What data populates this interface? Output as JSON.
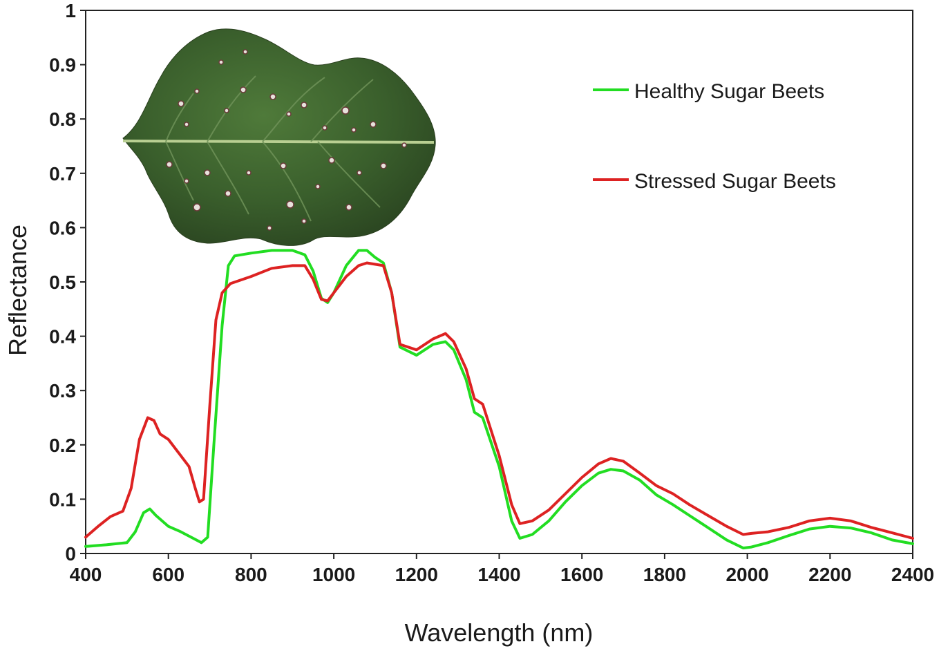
{
  "chart_data": {
    "type": "line",
    "title": "",
    "xlabel": "Wavelength (nm)",
    "ylabel": "Reflectance",
    "xlim": [
      400,
      2400
    ],
    "ylim": [
      0,
      1
    ],
    "x_ticks": [
      400,
      600,
      800,
      1000,
      1200,
      1400,
      1600,
      1800,
      2000,
      2200,
      2400
    ],
    "y_ticks": [
      0,
      0.1,
      0.2,
      0.3,
      0.4,
      0.5,
      0.6,
      0.7,
      0.8,
      0.9,
      1
    ],
    "y_tick_labels": [
      "0",
      "0.1",
      "0.2",
      "0.3",
      "0.4",
      "0.5",
      "0.6",
      "0.7",
      "0.8",
      "0.9",
      "1"
    ],
    "grid": false,
    "legend_position": "top-right",
    "series": [
      {
        "name": "Healthy Sugar Beets",
        "color": "#22dd22",
        "points": [
          [
            400,
            0.013
          ],
          [
            450,
            0.016
          ],
          [
            500,
            0.02
          ],
          [
            520,
            0.04
          ],
          [
            540,
            0.075
          ],
          [
            555,
            0.082
          ],
          [
            570,
            0.07
          ],
          [
            600,
            0.05
          ],
          [
            630,
            0.04
          ],
          [
            660,
            0.028
          ],
          [
            680,
            0.02
          ],
          [
            695,
            0.03
          ],
          [
            710,
            0.2
          ],
          [
            730,
            0.42
          ],
          [
            745,
            0.53
          ],
          [
            760,
            0.548
          ],
          [
            800,
            0.553
          ],
          [
            850,
            0.558
          ],
          [
            900,
            0.558
          ],
          [
            930,
            0.55
          ],
          [
            950,
            0.52
          ],
          [
            970,
            0.47
          ],
          [
            985,
            0.462
          ],
          [
            1000,
            0.48
          ],
          [
            1030,
            0.53
          ],
          [
            1060,
            0.558
          ],
          [
            1080,
            0.558
          ],
          [
            1100,
            0.545
          ],
          [
            1120,
            0.535
          ],
          [
            1140,
            0.48
          ],
          [
            1160,
            0.38
          ],
          [
            1200,
            0.365
          ],
          [
            1240,
            0.385
          ],
          [
            1270,
            0.39
          ],
          [
            1290,
            0.375
          ],
          [
            1320,
            0.32
          ],
          [
            1340,
            0.26
          ],
          [
            1360,
            0.25
          ],
          [
            1400,
            0.16
          ],
          [
            1430,
            0.06
          ],
          [
            1450,
            0.028
          ],
          [
            1480,
            0.035
          ],
          [
            1520,
            0.06
          ],
          [
            1560,
            0.095
          ],
          [
            1600,
            0.125
          ],
          [
            1640,
            0.148
          ],
          [
            1670,
            0.155
          ],
          [
            1700,
            0.152
          ],
          [
            1740,
            0.135
          ],
          [
            1780,
            0.108
          ],
          [
            1820,
            0.09
          ],
          [
            1860,
            0.07
          ],
          [
            1900,
            0.05
          ],
          [
            1950,
            0.025
          ],
          [
            1990,
            0.01
          ],
          [
            2010,
            0.012
          ],
          [
            2050,
            0.02
          ],
          [
            2100,
            0.033
          ],
          [
            2150,
            0.045
          ],
          [
            2200,
            0.05
          ],
          [
            2250,
            0.047
          ],
          [
            2300,
            0.038
          ],
          [
            2350,
            0.025
          ],
          [
            2400,
            0.018
          ]
        ]
      },
      {
        "name": "Stressed Sugar Beets",
        "color": "#dd2222",
        "points": [
          [
            400,
            0.03
          ],
          [
            430,
            0.05
          ],
          [
            460,
            0.068
          ],
          [
            490,
            0.078
          ],
          [
            510,
            0.12
          ],
          [
            530,
            0.21
          ],
          [
            550,
            0.25
          ],
          [
            565,
            0.245
          ],
          [
            580,
            0.22
          ],
          [
            600,
            0.21
          ],
          [
            625,
            0.185
          ],
          [
            650,
            0.16
          ],
          [
            665,
            0.12
          ],
          [
            675,
            0.095
          ],
          [
            685,
            0.1
          ],
          [
            700,
            0.27
          ],
          [
            715,
            0.43
          ],
          [
            730,
            0.48
          ],
          [
            750,
            0.497
          ],
          [
            800,
            0.51
          ],
          [
            850,
            0.525
          ],
          [
            900,
            0.53
          ],
          [
            930,
            0.53
          ],
          [
            950,
            0.505
          ],
          [
            970,
            0.468
          ],
          [
            985,
            0.465
          ],
          [
            1000,
            0.48
          ],
          [
            1030,
            0.51
          ],
          [
            1060,
            0.53
          ],
          [
            1080,
            0.535
          ],
          [
            1120,
            0.53
          ],
          [
            1140,
            0.48
          ],
          [
            1160,
            0.385
          ],
          [
            1200,
            0.375
          ],
          [
            1240,
            0.395
          ],
          [
            1270,
            0.405
          ],
          [
            1290,
            0.39
          ],
          [
            1320,
            0.34
          ],
          [
            1340,
            0.285
          ],
          [
            1360,
            0.275
          ],
          [
            1400,
            0.18
          ],
          [
            1430,
            0.09
          ],
          [
            1450,
            0.055
          ],
          [
            1480,
            0.06
          ],
          [
            1520,
            0.08
          ],
          [
            1560,
            0.11
          ],
          [
            1600,
            0.14
          ],
          [
            1640,
            0.165
          ],
          [
            1670,
            0.175
          ],
          [
            1700,
            0.17
          ],
          [
            1740,
            0.148
          ],
          [
            1780,
            0.125
          ],
          [
            1820,
            0.11
          ],
          [
            1860,
            0.09
          ],
          [
            1900,
            0.072
          ],
          [
            1950,
            0.05
          ],
          [
            1990,
            0.035
          ],
          [
            2010,
            0.037
          ],
          [
            2050,
            0.04
          ],
          [
            2100,
            0.048
          ],
          [
            2150,
            0.06
          ],
          [
            2200,
            0.065
          ],
          [
            2250,
            0.06
          ],
          [
            2300,
            0.048
          ],
          [
            2350,
            0.038
          ],
          [
            2400,
            0.028
          ]
        ]
      }
    ]
  }
}
